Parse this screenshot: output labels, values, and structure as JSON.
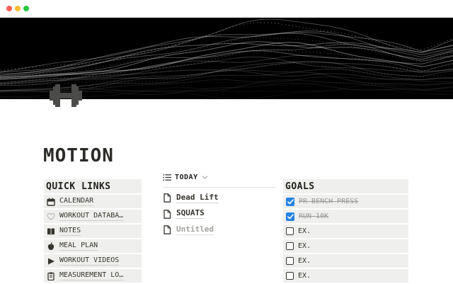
{
  "window": {
    "controls": [
      "close",
      "minimize",
      "zoom"
    ]
  },
  "page": {
    "icon": "dumbbell-icon",
    "title": "MOTION"
  },
  "quick_links": {
    "header": "QUICK LINKS",
    "items": [
      {
        "icon": "calendar-icon",
        "label": "CALENDAR"
      },
      {
        "icon": "heart-icon",
        "label": "WORKOUT DATABA…"
      },
      {
        "icon": "book-icon",
        "label": "NOTES"
      },
      {
        "icon": "apple-icon",
        "label": "MEAL PLAN"
      },
      {
        "icon": "play-icon",
        "label": "WORKOUT VIDEOS"
      },
      {
        "icon": "clipboard-icon",
        "label": "MEASUREMENT LO…"
      }
    ]
  },
  "today": {
    "header": "TODAY",
    "view_icon": "list-view-icon",
    "items": [
      {
        "icon": "page-icon",
        "label": "Dead Lift",
        "muted": false
      },
      {
        "icon": "page-icon",
        "label": "SQUATS",
        "muted": false
      },
      {
        "icon": "page-icon",
        "label": "Untitled",
        "muted": true
      }
    ]
  },
  "goals": {
    "header": "GOALS",
    "items": [
      {
        "label": "PR BENCH PRESS",
        "checked": true
      },
      {
        "label": "RUN 10K",
        "checked": true
      },
      {
        "label": "EX.",
        "checked": false
      },
      {
        "label": "EX.",
        "checked": false
      },
      {
        "label": "EX.",
        "checked": false
      },
      {
        "label": "EX.",
        "checked": false
      }
    ]
  },
  "colors": {
    "accent_blue": "#2383e2",
    "row_background": "#efefed",
    "text_dark": "#37352f",
    "text_muted": "#9b9a97",
    "cover_background": "#000000",
    "traffic_red": "#ff5f57",
    "traffic_yellow": "#febc2e",
    "traffic_green": "#28c840"
  }
}
